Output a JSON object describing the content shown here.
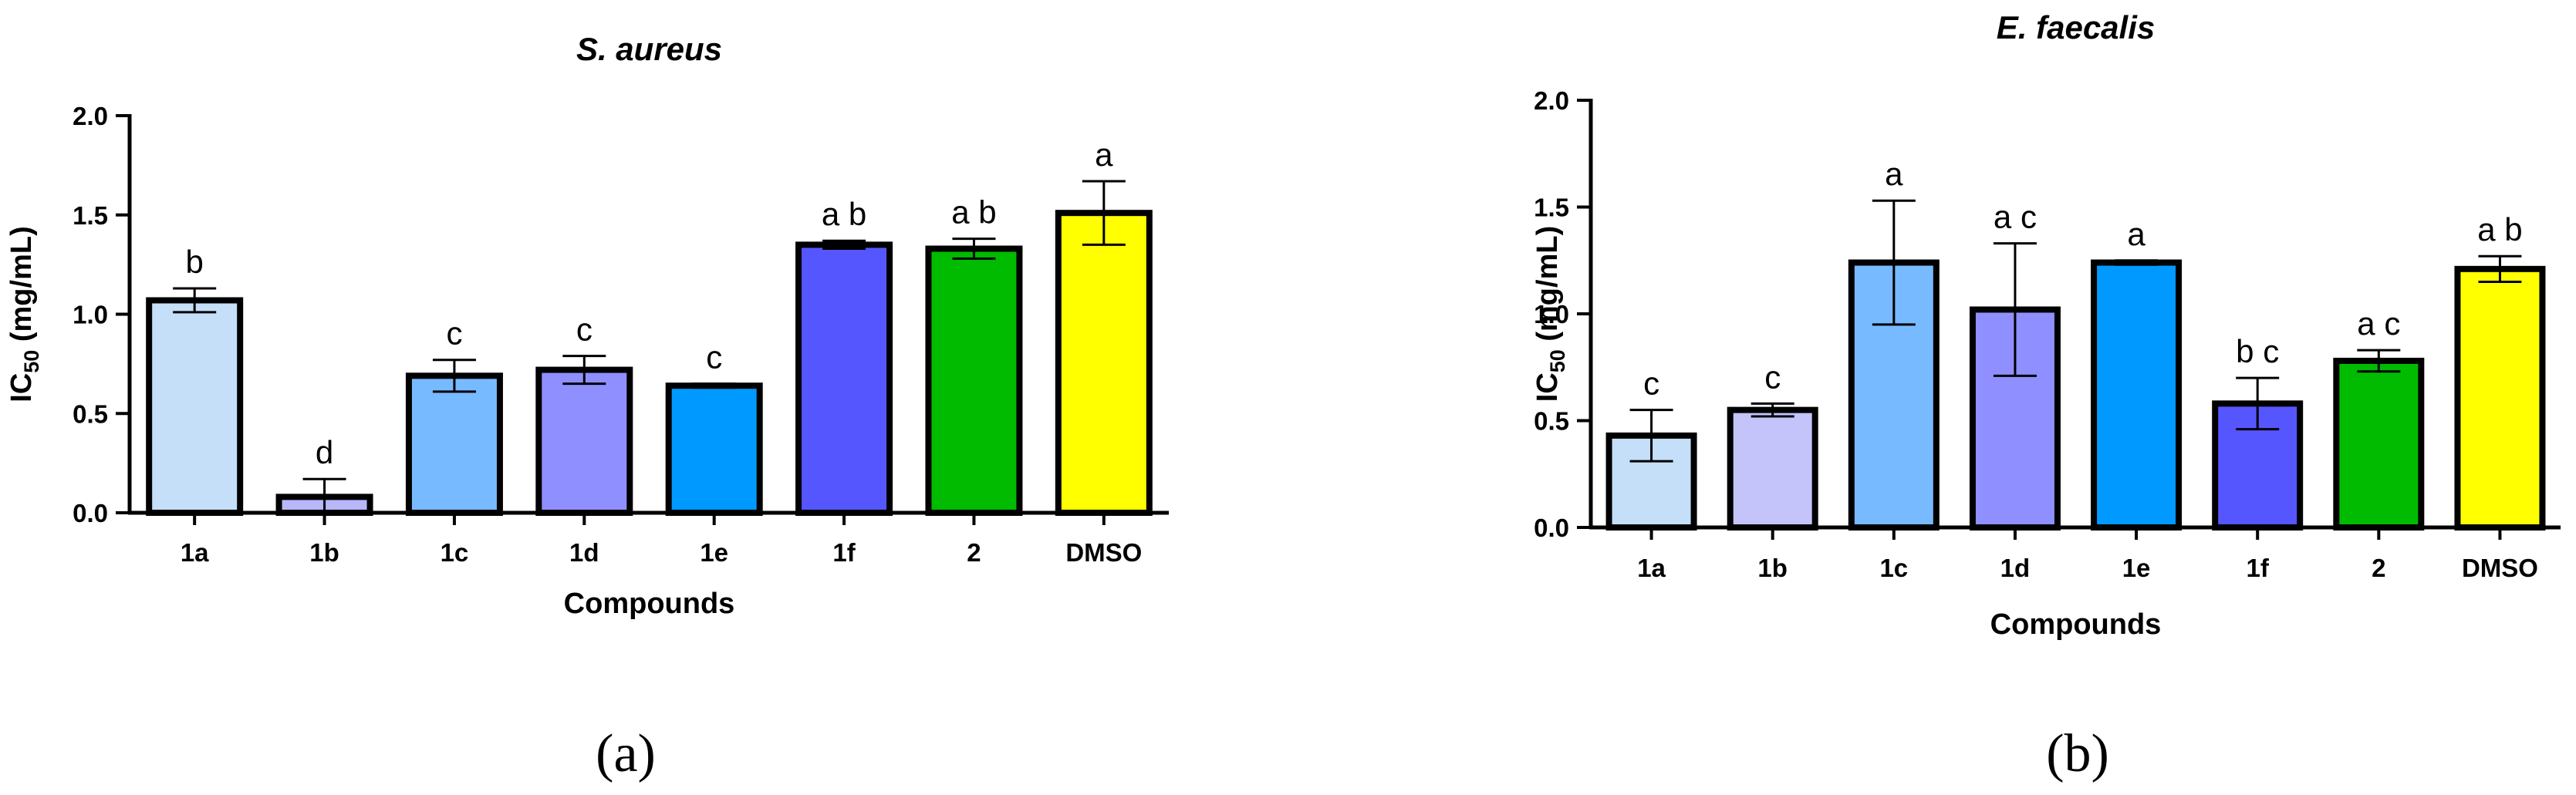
{
  "chart_data": [
    {
      "type": "bar",
      "panel_label": "(a)",
      "title": "S. aureus",
      "xlabel": "Compounds",
      "ylabel_main": "IC",
      "ylabel_sub": "50",
      "ylabel_unit": " (mg/mL)",
      "ylim": [
        0,
        2.0
      ],
      "yticks": [
        "0.0",
        "0.5",
        "1.0",
        "1.5",
        "2.0"
      ],
      "ytick_values": [
        0,
        0.5,
        1.0,
        1.5,
        2.0
      ],
      "grid": false,
      "categories": [
        "1a",
        "1b",
        "1c",
        "1d",
        "1e",
        "1f",
        "2",
        "DMSO"
      ],
      "values": [
        1.07,
        0.08,
        0.69,
        0.72,
        0.64,
        1.35,
        1.33,
        1.51
      ],
      "errors": [
        0.06,
        0.09,
        0.08,
        0.07,
        0.01,
        0.02,
        0.05,
        0.16
      ],
      "letters": [
        "b",
        "d",
        "c",
        "c",
        "c",
        "a b",
        "a b",
        "a"
      ],
      "colors": [
        "#c5dff8",
        "#b7b7f9",
        "#78baff",
        "#8f8fff",
        "#0099ff",
        "#5656ff",
        "#00bb00",
        "#ffff00"
      ]
    },
    {
      "type": "bar",
      "panel_label": "(b)",
      "title": "E. faecalis",
      "xlabel": "Compounds",
      "ylabel_main": "IC",
      "ylabel_sub": "50",
      "ylabel_unit": " (mg/mL)",
      "ylim": [
        0,
        2.0
      ],
      "yticks": [
        "0.0",
        "0.5",
        "1.0",
        "1.5",
        "2.0"
      ],
      "ytick_values": [
        0,
        0.5,
        1.0,
        1.5,
        2.0
      ],
      "grid": false,
      "categories": [
        "1a",
        "1b",
        "1c",
        "1d",
        "1e",
        "1f",
        "2",
        "DMSO"
      ],
      "values": [
        0.43,
        0.55,
        1.24,
        1.02,
        1.24,
        0.58,
        0.78,
        1.21
      ],
      "errors": [
        0.12,
        0.03,
        0.29,
        0.31,
        0.01,
        0.12,
        0.05,
        0.06
      ],
      "letters": [
        "c",
        "c",
        "a",
        "a c",
        "a",
        "b c",
        "a c",
        "a b"
      ],
      "colors": [
        "#c5dff8",
        "#c4c4fb",
        "#78baff",
        "#8f8fff",
        "#0099ff",
        "#5656ff",
        "#00bb00",
        "#ffff00"
      ]
    }
  ]
}
